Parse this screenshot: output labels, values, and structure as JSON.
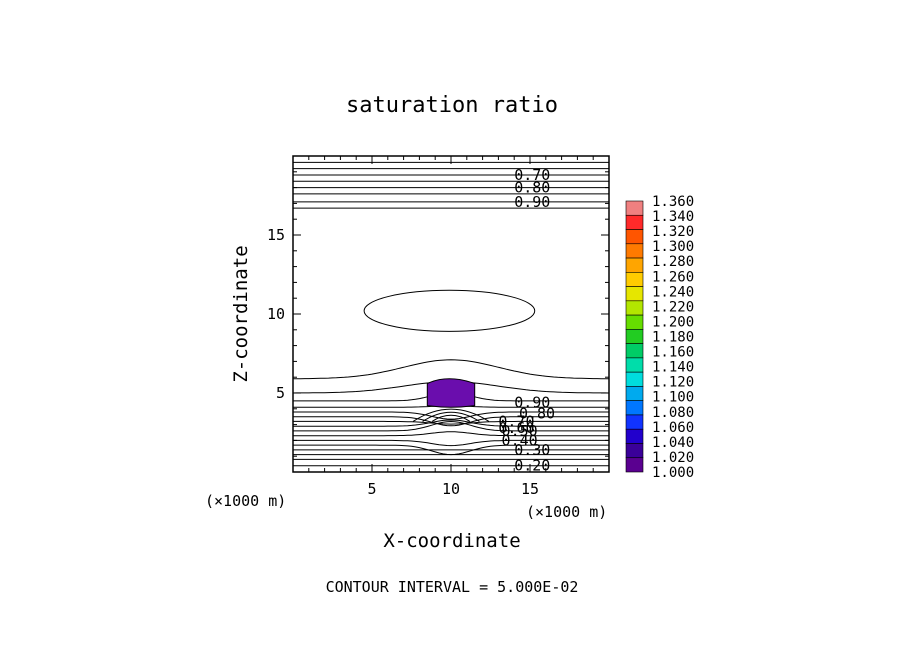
{
  "chart_data": {
    "type": "contour",
    "title": "saturation ratio",
    "xlabel": "X-coordinate",
    "ylabel": "Z-coordinate",
    "xunit": "(×1000 m)",
    "zunit": "(×1000 m)",
    "xlim": [
      0,
      20
    ],
    "ylim": [
      0,
      20
    ],
    "x_ticks": [
      5,
      10,
      15
    ],
    "y_ticks": [
      5,
      10,
      15
    ],
    "footer": "CONTOUR INTERVAL = 5.000E-02",
    "contour_labels": [
      {
        "text": "0.70",
        "x": 14.0,
        "z": 18.8
      },
      {
        "text": "0.80",
        "x": 14.0,
        "z": 18.0
      },
      {
        "text": "0.90",
        "x": 14.0,
        "z": 17.1
      },
      {
        "text": "0.90",
        "x": 14.0,
        "z": 4.4
      },
      {
        "text": "0.80",
        "x": 14.3,
        "z": 3.7
      },
      {
        "text": "0.70",
        "x": 13.0,
        "z": 3.2
      },
      {
        "text": "0.60",
        "x": 13.0,
        "z": 2.8
      },
      {
        "text": "0.50",
        "x": 13.2,
        "z": 2.6
      },
      {
        "text": "0.40",
        "x": 13.2,
        "z": 2.0
      },
      {
        "text": "0.30",
        "x": 14.0,
        "z": 1.4
      },
      {
        "text": "0.20",
        "x": 14.0,
        "z": 0.4
      }
    ],
    "shaded_region": {
      "level": 1.0,
      "x_range": [
        8.5,
        11.5
      ],
      "z_range": [
        4.2,
        6.2
      ],
      "color": "#6a0dad"
    },
    "colorbar": {
      "levels": [
        "1.360",
        "1.340",
        "1.320",
        "1.300",
        "1.280",
        "1.260",
        "1.240",
        "1.220",
        "1.200",
        "1.180",
        "1.160",
        "1.140",
        "1.120",
        "1.100",
        "1.080",
        "1.060",
        "1.040",
        "1.020",
        "1.000"
      ],
      "colors": [
        "#f08080",
        "#ff2a2a",
        "#ff5500",
        "#ff7a00",
        "#ffa500",
        "#ffcc00",
        "#e6e600",
        "#b3e600",
        "#66dd00",
        "#22cc22",
        "#00cc66",
        "#00ddaa",
        "#00dddd",
        "#00aaee",
        "#0077ff",
        "#1133ff",
        "#2200cc",
        "#3a0099",
        "#5a0090"
      ]
    }
  }
}
